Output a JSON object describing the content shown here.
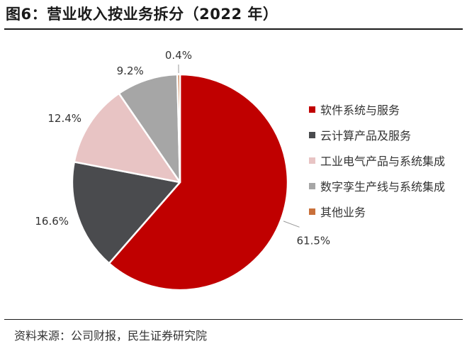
{
  "header": {
    "title": "图6：营业收入按业务拆分（2022 年）"
  },
  "footer": {
    "source": "资料来源：公司财报，民生证券研究院"
  },
  "chart_data": {
    "type": "pie",
    "title": "图6：营业收入按业务拆分（2022 年）",
    "slices": [
      {
        "label": "软件系统与服务",
        "value": 61.5,
        "display": "61.5%",
        "color": "#c00000"
      },
      {
        "label": "云计算产品及服务",
        "value": 16.6,
        "display": "16.6%",
        "color": "#4a4b4e"
      },
      {
        "label": "工业电气产品与系统集成",
        "value": 12.4,
        "display": "12.4%",
        "color": "#e8c4c4"
      },
      {
        "label": "数字孪生产线与系统集成",
        "value": 9.2,
        "display": "9.2%",
        "color": "#a6a6a6"
      },
      {
        "label": "其他业务",
        "value": 0.4,
        "display": "0.4%",
        "color": "#c9703a"
      }
    ],
    "legend_position": "right"
  }
}
